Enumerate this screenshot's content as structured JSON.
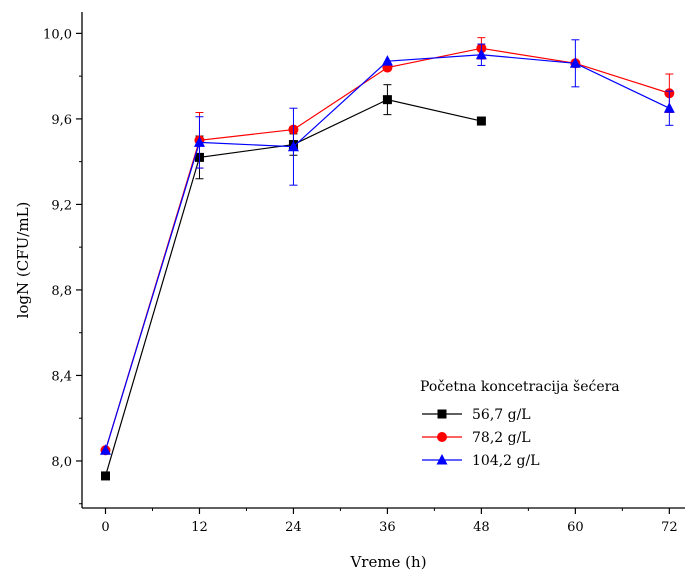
{
  "chart_data": {
    "type": "line",
    "title": "",
    "xlabel": "Vreme (h)",
    "ylabel": "logN (CFU/mL)",
    "x": [
      0,
      12,
      24,
      36,
      48,
      60,
      72
    ],
    "xlim": [
      -3,
      74
    ],
    "ylim": [
      7.78,
      10.1
    ],
    "xticks": [
      0,
      12,
      24,
      36,
      48,
      60,
      72
    ],
    "yticks": [
      8.0,
      8.4,
      8.8,
      9.2,
      9.6,
      10.0
    ],
    "ytick_labels": [
      "8,0",
      "8,4",
      "8,8",
      "9,2",
      "9,6",
      "10,0"
    ],
    "grid": false,
    "legend": {
      "title": "Početna koncetracija šećera",
      "position": "bottom-right"
    },
    "series": [
      {
        "name": "56,7 g/L",
        "color": "#000000",
        "marker": "square",
        "x": [
          0,
          12,
          24,
          36,
          48
        ],
        "y": [
          7.93,
          9.42,
          9.48,
          9.69,
          9.59
        ],
        "err": [
          0.0,
          0.1,
          0.05,
          0.07,
          0.0
        ]
      },
      {
        "name": "78,2 g/L",
        "color": "#ff0000",
        "marker": "circle",
        "x": [
          0,
          12,
          24,
          36,
          48,
          60,
          72
        ],
        "y": [
          8.05,
          9.5,
          9.55,
          9.84,
          9.93,
          9.86,
          9.72
        ],
        "err": [
          0.0,
          0.13,
          0.0,
          0.0,
          0.05,
          0.0,
          0.09
        ]
      },
      {
        "name": "104,2 g/L",
        "color": "#0000ff",
        "marker": "triangle",
        "x": [
          0,
          12,
          24,
          36,
          48,
          60,
          72
        ],
        "y": [
          8.05,
          9.49,
          9.47,
          9.87,
          9.9,
          9.86,
          9.65
        ],
        "err": [
          0.0,
          0.12,
          0.18,
          0.0,
          0.05,
          0.11,
          0.08
        ]
      }
    ]
  }
}
